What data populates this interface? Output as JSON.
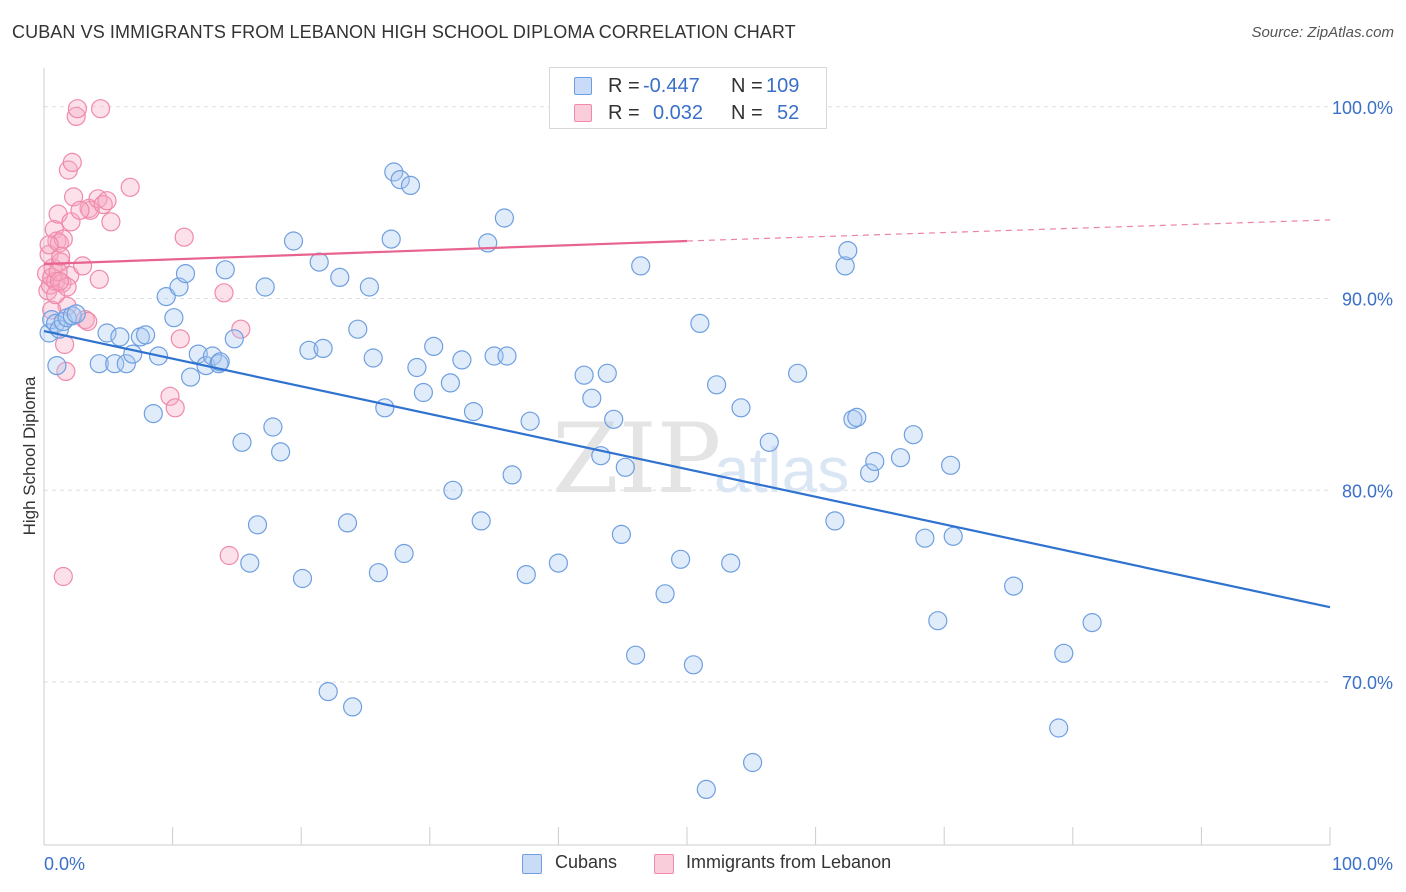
{
  "title": "CUBAN VS IMMIGRANTS FROM LEBANON HIGH SCHOOL DIPLOMA CORRELATION CHART",
  "source": "Source: ZipAtlas.com",
  "watermark": {
    "zip": "ZIP",
    "atlas": "atlas"
  },
  "legend": {
    "r_label": "R =",
    "n_label": "N =",
    "rows": [
      {
        "r": "-0.447",
        "n": "109"
      },
      {
        "r": "0.032",
        "n": "52"
      }
    ]
  },
  "chart_data": {
    "type": "scatter",
    "title": "CUBAN VS IMMIGRANTS FROM LEBANON HIGH SCHOOL DIPLOMA CORRELATION CHART",
    "xlabel": "",
    "ylabel": "High School Diploma",
    "xlim": [
      0,
      100
    ],
    "ylim": [
      61.5,
      101.5
    ],
    "x_tick_labels": [
      "0.0%",
      "100.0%"
    ],
    "y_ticks": [
      70,
      80,
      90,
      100
    ],
    "y_tick_labels": [
      "70.0%",
      "80.0%",
      "90.0%",
      "100.0%"
    ],
    "grid": true,
    "legend_position": "top-center",
    "colors": {
      "cubans": "#6f9fe0",
      "lebanon": "#f08aaa",
      "cubans_line": "#2f72d0",
      "lebanon_line": "#e8638f",
      "tick_text": "#3a70c8"
    },
    "series": [
      {
        "name": "Cubans",
        "r": -0.447,
        "n": 109,
        "trend": {
          "x": [
            0,
            100
          ],
          "y": [
            88.3,
            73.9
          ]
        },
        "points": [
          [
            0.4,
            88.2
          ],
          [
            0.6,
            88.9
          ],
          [
            0.9,
            88.7
          ],
          [
            1.2,
            88.4
          ],
          [
            1.5,
            88.8
          ],
          [
            1.8,
            89.0
          ],
          [
            2.2,
            89.1
          ],
          [
            2.5,
            89.2
          ],
          [
            4.3,
            86.6
          ],
          [
            4.9,
            88.2
          ],
          [
            5.5,
            86.6
          ],
          [
            5.9,
            88.0
          ],
          [
            6.4,
            86.6
          ],
          [
            6.9,
            87.1
          ],
          [
            7.5,
            88.0
          ],
          [
            7.9,
            88.1
          ],
          [
            8.5,
            84.0
          ],
          [
            8.9,
            87.0
          ],
          [
            9.5,
            90.1
          ],
          [
            10.1,
            89.0
          ],
          [
            10.5,
            90.6
          ],
          [
            11.0,
            91.3
          ],
          [
            11.4,
            85.9
          ],
          [
            12.0,
            87.1
          ],
          [
            12.6,
            86.5
          ],
          [
            13.1,
            87.0
          ],
          [
            13.6,
            86.6
          ],
          [
            14.1,
            91.5
          ],
          [
            14.8,
            87.9
          ],
          [
            15.4,
            82.5
          ],
          [
            16.0,
            76.2
          ],
          [
            16.6,
            78.2
          ],
          [
            17.2,
            90.6
          ],
          [
            17.8,
            83.3
          ],
          [
            18.4,
            82.0
          ],
          [
            19.4,
            93.0
          ],
          [
            20.1,
            75.4
          ],
          [
            20.6,
            87.3
          ],
          [
            21.4,
            91.9
          ],
          [
            21.7,
            87.4
          ],
          [
            22.1,
            69.5
          ],
          [
            23.0,
            91.1
          ],
          [
            23.6,
            78.3
          ],
          [
            24.0,
            68.7
          ],
          [
            24.4,
            88.4
          ],
          [
            25.3,
            90.6
          ],
          [
            25.6,
            86.9
          ],
          [
            26.0,
            75.7
          ],
          [
            26.5,
            84.3
          ],
          [
            27.2,
            96.6
          ],
          [
            27.7,
            96.2
          ],
          [
            28.0,
            76.7
          ],
          [
            28.5,
            95.9
          ],
          [
            29.0,
            86.4
          ],
          [
            29.5,
            85.1
          ],
          [
            30.3,
            87.5
          ],
          [
            31.6,
            85.6
          ],
          [
            31.8,
            80.0
          ],
          [
            32.5,
            86.8
          ],
          [
            33.4,
            84.1
          ],
          [
            34.0,
            78.4
          ],
          [
            34.5,
            92.9
          ],
          [
            35.0,
            87.0
          ],
          [
            35.8,
            94.2
          ],
          [
            36.4,
            80.8
          ],
          [
            37.5,
            75.6
          ],
          [
            37.8,
            83.6
          ],
          [
            40.0,
            76.2
          ],
          [
            42.0,
            86.0
          ],
          [
            42.6,
            84.8
          ],
          [
            43.3,
            81.8
          ],
          [
            43.8,
            86.1
          ],
          [
            44.3,
            83.7
          ],
          [
            44.9,
            77.7
          ],
          [
            45.2,
            81.2
          ],
          [
            46.0,
            71.4
          ],
          [
            46.4,
            91.7
          ],
          [
            48.3,
            74.6
          ],
          [
            49.5,
            76.4
          ],
          [
            50.5,
            70.9
          ],
          [
            51.0,
            88.7
          ],
          [
            51.5,
            64.4
          ],
          [
            52.3,
            85.5
          ],
          [
            53.4,
            76.2
          ],
          [
            54.2,
            84.3
          ],
          [
            55.1,
            65.8
          ],
          [
            56.4,
            82.5
          ],
          [
            58.6,
            86.1
          ],
          [
            61.5,
            78.4
          ],
          [
            62.3,
            91.7
          ],
          [
            62.5,
            92.5
          ],
          [
            62.9,
            83.7
          ],
          [
            63.2,
            83.8
          ],
          [
            64.2,
            80.9
          ],
          [
            64.6,
            81.5
          ],
          [
            66.6,
            81.7
          ],
          [
            67.6,
            82.9
          ],
          [
            68.5,
            77.5
          ],
          [
            69.5,
            73.2
          ],
          [
            70.7,
            77.6
          ],
          [
            70.5,
            81.3
          ],
          [
            75.4,
            75.0
          ],
          [
            78.9,
            67.6
          ],
          [
            79.3,
            71.5
          ],
          [
            81.5,
            73.1
          ],
          [
            13.7,
            86.7
          ],
          [
            36.0,
            87.0
          ],
          [
            1.0,
            86.5
          ],
          [
            27.0,
            93.1
          ]
        ]
      },
      {
        "name": "Immigrants from Lebanon",
        "r": 0.032,
        "n": 52,
        "trend": {
          "x": [
            0,
            50
          ],
          "y": [
            91.8,
            93.0
          ],
          "dashed_to": {
            "x": 100,
            "y": 94.1
          }
        },
        "points": [
          [
            0.2,
            91.3
          ],
          [
            0.3,
            90.4
          ],
          [
            0.4,
            92.3
          ],
          [
            0.5,
            90.7
          ],
          [
            0.6,
            91.1
          ],
          [
            0.7,
            91.6
          ],
          [
            0.8,
            93.6
          ],
          [
            0.9,
            90.9
          ],
          [
            1.0,
            93.0
          ],
          [
            1.1,
            94.4
          ],
          [
            1.2,
            92.9
          ],
          [
            1.3,
            91.9
          ],
          [
            1.4,
            90.8
          ],
          [
            1.5,
            93.1
          ],
          [
            1.6,
            87.6
          ],
          [
            1.7,
            86.2
          ],
          [
            1.8,
            89.6
          ],
          [
            1.9,
            96.7
          ],
          [
            2.0,
            91.2
          ],
          [
            2.1,
            94.0
          ],
          [
            2.2,
            97.1
          ],
          [
            2.3,
            95.3
          ],
          [
            2.5,
            99.5
          ],
          [
            2.6,
            99.9
          ],
          [
            3.0,
            91.7
          ],
          [
            3.2,
            88.9
          ],
          [
            3.5,
            94.7
          ],
          [
            3.6,
            94.6
          ],
          [
            4.2,
            95.2
          ],
          [
            4.3,
            91.0
          ],
          [
            4.4,
            99.9
          ],
          [
            4.6,
            94.9
          ],
          [
            4.9,
            95.1
          ],
          [
            5.2,
            94.0
          ],
          [
            6.7,
            95.8
          ],
          [
            9.8,
            84.9
          ],
          [
            10.2,
            84.3
          ],
          [
            10.6,
            87.9
          ],
          [
            10.9,
            93.2
          ],
          [
            14.0,
            90.3
          ],
          [
            15.3,
            88.4
          ],
          [
            14.4,
            76.6
          ],
          [
            1.5,
            75.5
          ],
          [
            0.6,
            89.4
          ],
          [
            1.1,
            91.4
          ],
          [
            0.9,
            90.2
          ],
          [
            2.8,
            94.6
          ],
          [
            1.3,
            92.2
          ],
          [
            0.4,
            92.8
          ],
          [
            1.8,
            90.6
          ],
          [
            3.4,
            88.8
          ],
          [
            1.2,
            90.9
          ]
        ]
      }
    ]
  },
  "bottom_legend": {
    "items": [
      {
        "label": "Cubans"
      },
      {
        "label": "Immigrants from Lebanon"
      }
    ]
  }
}
